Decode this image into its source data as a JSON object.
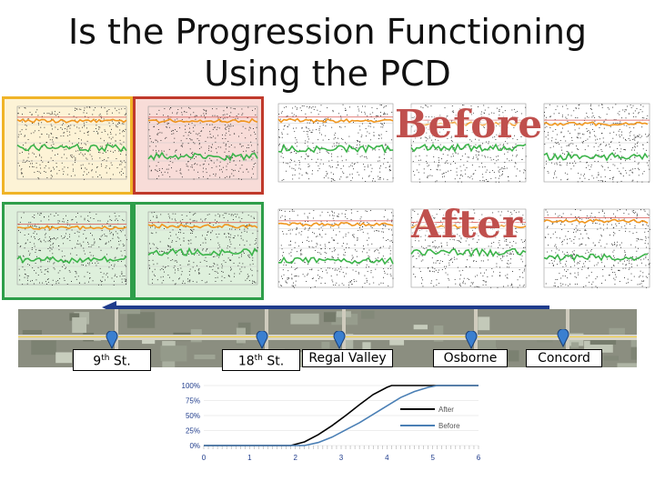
{
  "title": {
    "line1": "Is the Progression Functioning",
    "line2": "Using the PCD"
  },
  "labels": {
    "before": "Before",
    "after": "After"
  },
  "streets": [
    {
      "name": "9",
      "suffix": "th",
      "rest": " St."
    },
    {
      "name": "18",
      "suffix": "th",
      "rest": " St."
    },
    {
      "name": "Regal Valley",
      "suffix": "",
      "rest": ""
    },
    {
      "name": "Osborne",
      "suffix": "",
      "rest": ""
    },
    {
      "name": "Concord",
      "suffix": "",
      "rest": ""
    }
  ],
  "colors": {
    "yellow_border": "#f0b428",
    "red_border": "#c0392b",
    "green_border": "#2e9e4a",
    "arrow": "#1f3c8c",
    "after": "#000000",
    "before": "#4a7fb5"
  },
  "chart_data": {
    "type": "line",
    "xticks": [
      "0",
      "1",
      "2",
      "3",
      "4",
      "5",
      "6"
    ],
    "yticks": [
      "0%",
      "25%",
      "50%",
      "75%",
      "100%"
    ],
    "xlim": [
      0,
      6
    ],
    "ylim": [
      0,
      1
    ],
    "series": [
      {
        "name": "After",
        "x": [
          0,
          1.9,
          2.2,
          2.5,
          2.8,
          3.1,
          3.4,
          3.7,
          4.0,
          4.1,
          6
        ],
        "y": [
          0,
          0,
          0.06,
          0.18,
          0.33,
          0.5,
          0.68,
          0.85,
          0.97,
          1.0,
          1.0
        ]
      },
      {
        "name": "Before",
        "x": [
          0,
          2.2,
          2.5,
          2.8,
          3.1,
          3.4,
          3.7,
          4.0,
          4.3,
          4.6,
          4.9,
          5.1,
          6
        ],
        "y": [
          0,
          0,
          0.05,
          0.14,
          0.26,
          0.38,
          0.52,
          0.66,
          0.8,
          0.9,
          0.97,
          1.0,
          1.0
        ]
      }
    ],
    "legend": "right"
  }
}
